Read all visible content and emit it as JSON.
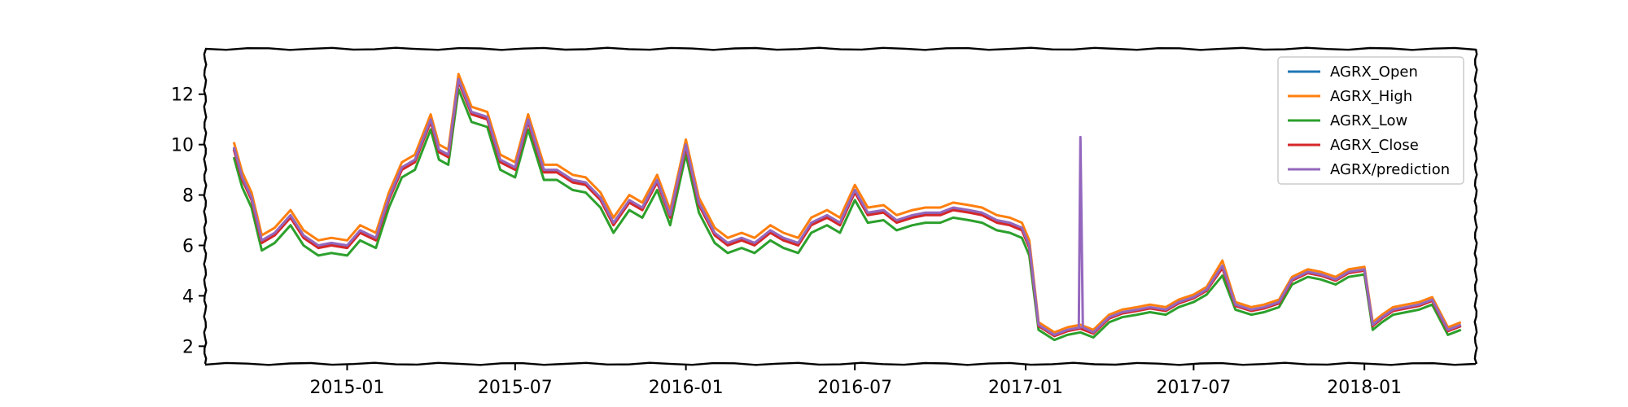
{
  "chart_data": {
    "type": "line",
    "title": "",
    "xlabel": "",
    "ylabel": "",
    "xlim": [
      "2014-08-01",
      "2018-05-01"
    ],
    "ylim": [
      1.3,
      13.8
    ],
    "x_ticks": [
      "2015-01-01",
      "2015-07-01",
      "2016-01-01",
      "2016-07-01",
      "2017-01-01",
      "2017-07-01",
      "2018-01-01"
    ],
    "x_tick_labels": [
      "2015-01",
      "2015-07",
      "2016-01",
      "2016-07",
      "2017-01",
      "2017-07",
      "2018-01"
    ],
    "y_ticks": [
      2,
      4,
      6,
      8,
      10,
      12
    ],
    "y_tick_labels": [
      "2",
      "4",
      "6",
      "8",
      "10",
      "12"
    ],
    "grid": false,
    "legend_position": "top-right",
    "base_x": [
      "2014-09-01",
      "2014-09-10",
      "2014-09-20",
      "2014-10-01",
      "2014-10-15",
      "2014-11-01",
      "2014-11-15",
      "2014-12-01",
      "2014-12-15",
      "2015-01-01",
      "2015-01-15",
      "2015-02-01",
      "2015-02-15",
      "2015-03-01",
      "2015-03-15",
      "2015-04-01",
      "2015-04-10",
      "2015-04-20",
      "2015-05-01",
      "2015-05-15",
      "2015-06-01",
      "2015-06-15",
      "2015-07-01",
      "2015-07-15",
      "2015-08-01",
      "2015-08-15",
      "2015-09-01",
      "2015-09-15",
      "2015-10-01",
      "2015-10-15",
      "2015-11-01",
      "2015-11-15",
      "2015-12-01",
      "2015-12-15",
      "2016-01-01",
      "2016-01-15",
      "2016-02-01",
      "2016-02-15",
      "2016-03-01",
      "2016-03-15",
      "2016-04-01",
      "2016-04-15",
      "2016-05-01",
      "2016-05-15",
      "2016-06-01",
      "2016-06-15",
      "2016-07-01",
      "2016-07-15",
      "2016-08-01",
      "2016-08-15",
      "2016-09-01",
      "2016-09-15",
      "2016-10-01",
      "2016-10-15",
      "2016-11-01",
      "2016-11-15",
      "2016-12-01",
      "2016-12-15",
      "2016-12-28",
      "2017-01-05",
      "2017-01-15",
      "2017-02-01",
      "2017-02-15",
      "2017-03-01",
      "2017-03-15",
      "2017-04-01",
      "2017-04-15",
      "2017-05-01",
      "2017-05-15",
      "2017-06-01",
      "2017-06-15",
      "2017-07-01",
      "2017-07-15",
      "2017-08-01",
      "2017-08-15",
      "2017-09-01",
      "2017-09-15",
      "2017-10-01",
      "2017-10-15",
      "2017-11-01",
      "2017-11-15",
      "2017-12-01",
      "2017-12-15",
      "2018-01-01",
      "2018-01-10",
      "2018-01-20",
      "2018-02-01",
      "2018-02-15",
      "2018-03-01",
      "2018-03-15",
      "2018-04-01",
      "2018-04-15"
    ],
    "base_close": [
      9.8,
      8.6,
      7.8,
      6.1,
      6.4,
      7.1,
      6.3,
      5.9,
      6.0,
      5.9,
      6.5,
      6.2,
      7.8,
      9.0,
      9.3,
      10.9,
      9.7,
      9.5,
      12.5,
      11.2,
      11.0,
      9.3,
      9.0,
      10.9,
      8.9,
      8.9,
      8.5,
      8.4,
      7.8,
      6.8,
      7.7,
      7.4,
      8.5,
      7.1,
      9.9,
      7.6,
      6.4,
      6.0,
      6.2,
      6.0,
      6.5,
      6.2,
      6.0,
      6.8,
      7.1,
      6.8,
      8.1,
      7.2,
      7.3,
      6.9,
      7.1,
      7.2,
      7.2,
      7.4,
      7.3,
      7.2,
      6.9,
      6.8,
      6.6,
      5.9,
      2.8,
      2.4,
      2.6,
      2.7,
      2.5,
      3.1,
      3.3,
      3.4,
      3.5,
      3.4,
      3.7,
      3.9,
      4.2,
      5.1,
      3.6,
      3.4,
      3.5,
      3.7,
      4.6,
      4.9,
      4.8,
      4.6,
      4.9,
      5.0,
      2.8,
      3.1,
      3.4,
      3.5,
      3.6,
      3.8,
      2.6,
      2.8
    ],
    "series": [
      {
        "name": "AGRX_Open",
        "color": "#1f77b4",
        "offset": 0.05
      },
      {
        "name": "AGRX_High",
        "color": "#ff7f0e",
        "offset": 0.3
      },
      {
        "name": "AGRX_Low",
        "color": "#2ca02c",
        "offset": -0.3
      },
      {
        "name": "AGRX_Close",
        "color": "#d62728",
        "offset": 0.0
      },
      {
        "name": "AGRX/prediction",
        "color": "#9467bd",
        "offset": 0.1,
        "spike": {
          "x": "2017-03-01",
          "y": 10.3
        }
      }
    ]
  }
}
